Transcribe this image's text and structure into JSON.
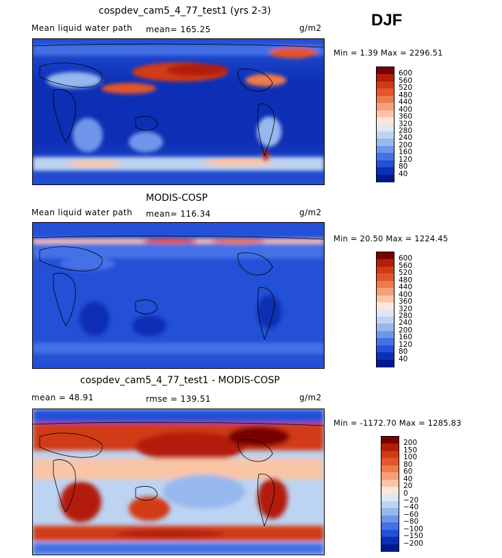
{
  "season": "DJF",
  "panels": [
    {
      "title": "cospdev_cam5_4_77_test1 (yrs 2-3)",
      "left_label": "Mean liquid water path",
      "center_label": "mean= 165.25",
      "units": "g/m2",
      "min_max": "Min =   1.39 Max = 2296.51",
      "colorbar": {
        "labels": [
          "600",
          "560",
          "520",
          "480",
          "440",
          "400",
          "360",
          "320",
          "280",
          "240",
          "200",
          "160",
          "120",
          "80",
          "40"
        ],
        "colors": [
          "#7a0000",
          "#b31e0a",
          "#d13a15",
          "#e2562a",
          "#ee7b4e",
          "#f5a07a",
          "#fac5a6",
          "#fbe6d8",
          "#dde8f6",
          "#bdd3f2",
          "#97b8ee",
          "#6f95ea",
          "#4571e6",
          "#2350d6",
          "#0d2fb5",
          "#001a8c"
        ]
      }
    },
    {
      "title": "MODIS-COSP",
      "left_label": "Mean liquid water path",
      "center_label": "mean= 116.34",
      "units": "g/m2",
      "min_max": "Min =  20.50 Max = 1224.45",
      "colorbar": {
        "labels": [
          "600",
          "560",
          "520",
          "480",
          "440",
          "400",
          "360",
          "320",
          "280",
          "240",
          "200",
          "160",
          "120",
          "80",
          "40"
        ],
        "colors": [
          "#7a0000",
          "#b31e0a",
          "#d13a15",
          "#e2562a",
          "#ee7b4e",
          "#f5a07a",
          "#fac5a6",
          "#fbe6d8",
          "#dde8f6",
          "#bdd3f2",
          "#97b8ee",
          "#6f95ea",
          "#4571e6",
          "#2350d6",
          "#0d2fb5",
          "#001a8c"
        ]
      }
    },
    {
      "title": "cospdev_cam5_4_77_test1 - MODIS-COSP",
      "left_label": "mean =   48.91",
      "center_label": "rmse = 139.51",
      "units": "g/m2",
      "min_max": "Min = -1172.70 Max = 1285.83",
      "colorbar": {
        "labels": [
          "200",
          "150",
          "100",
          "80",
          "60",
          "40",
          "20",
          "0",
          "−20",
          "−40",
          "−60",
          "−80",
          "−100",
          "−150",
          "−200"
        ],
        "colors": [
          "#7a0000",
          "#b31e0a",
          "#d13a15",
          "#e2562a",
          "#ee7b4e",
          "#f5a07a",
          "#fac5a6",
          "#fbe6d8",
          "#dde8f6",
          "#bdd3f2",
          "#97b8ee",
          "#6f95ea",
          "#4571e6",
          "#2350d6",
          "#0d2fb5",
          "#001a8c"
        ]
      }
    }
  ],
  "chart_data": [
    {
      "type": "heatmap",
      "title": "cospdev_cam5_4_77_test1 (yrs 2-3)",
      "subtitle": "Mean liquid water path",
      "units": "g/m2",
      "mean": 165.25,
      "min": 1.39,
      "max": 2296.51,
      "contour_levels": [
        40,
        80,
        120,
        160,
        200,
        240,
        280,
        320,
        360,
        400,
        440,
        480,
        520,
        560,
        600
      ]
    },
    {
      "type": "heatmap",
      "title": "MODIS-COSP",
      "subtitle": "Mean liquid water path",
      "units": "g/m2",
      "mean": 116.34,
      "min": 20.5,
      "max": 1224.45,
      "contour_levels": [
        40,
        80,
        120,
        160,
        200,
        240,
        280,
        320,
        360,
        400,
        440,
        480,
        520,
        560,
        600
      ]
    },
    {
      "type": "heatmap",
      "title": "cospdev_cam5_4_77_test1 - MODIS-COSP",
      "units": "g/m2",
      "mean": 48.91,
      "rmse": 139.51,
      "min": -1172.7,
      "max": 1285.83,
      "contour_levels": [
        -200,
        -150,
        -100,
        -80,
        -60,
        -40,
        -20,
        0,
        20,
        40,
        60,
        80,
        100,
        150,
        200
      ]
    }
  ]
}
